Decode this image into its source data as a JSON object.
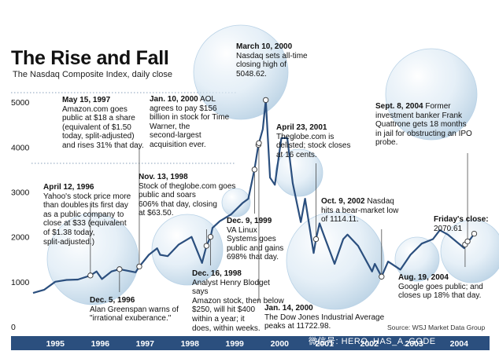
{
  "title": "The Rise and Fall",
  "subtitle": "The Nasdaq Composite Index, daily close",
  "source": "Source: WSJ Market Data Group",
  "watermark": "微信号: HERO_HAS_A_GODE",
  "colors": {
    "line": "#2b4f7e",
    "band": "#2b4f7e",
    "bubble": "#c7dced",
    "dots": "#9fb3c8",
    "text": "#111111"
  },
  "chart_data": {
    "type": "line",
    "title": "The Rise and Fall",
    "subtitle": "The Nasdaq Composite Index, daily close",
    "x_start": "1995-01-01",
    "x_end": "2005-01-01",
    "x_ticks": [
      "1995",
      "1996",
      "1997",
      "1998",
      "1999",
      "2000",
      "2001",
      "2002",
      "2003",
      "2004"
    ],
    "y_ticks": [
      0,
      1000,
      2000,
      3000,
      4000,
      5000
    ],
    "ylim": [
      0,
      5300
    ],
    "grid": false,
    "series": [
      {
        "points": [
          [
            "1995-01-01",
            750
          ],
          [
            "1995-04-01",
            820
          ],
          [
            "1995-07-01",
            1000
          ],
          [
            "1995-10-01",
            1040
          ],
          [
            "1996-01-01",
            1050
          ],
          [
            "1996-04-12",
            1140
          ],
          [
            "1996-06-01",
            1230
          ],
          [
            "1996-07-15",
            1060
          ],
          [
            "1996-10-01",
            1230
          ],
          [
            "1996-12-05",
            1280
          ],
          [
            "1997-04-15",
            1210
          ],
          [
            "1997-05-15",
            1340
          ],
          [
            "1997-08-01",
            1600
          ],
          [
            "1997-10-07",
            1745
          ],
          [
            "1997-11-01",
            1600
          ],
          [
            "1998-01-01",
            1570
          ],
          [
            "1998-04-01",
            1830
          ],
          [
            "1998-07-15",
            2000
          ],
          [
            "1998-10-08",
            1420
          ],
          [
            "1998-11-13",
            1800
          ],
          [
            "1998-12-16",
            2000
          ],
          [
            "1999-01-01",
            2200
          ],
          [
            "1999-03-01",
            2350
          ],
          [
            "1999-06-01",
            2500
          ],
          [
            "1999-09-01",
            2750
          ],
          [
            "1999-10-20",
            2850
          ],
          [
            "1999-12-09",
            3500
          ],
          [
            "2000-01-10",
            4050
          ],
          [
            "2000-02-15",
            4400
          ],
          [
            "2000-03-10",
            5048.62
          ],
          [
            "2000-04-14",
            3320
          ],
          [
            "2000-05-23",
            3160
          ],
          [
            "2000-07-15",
            4200
          ],
          [
            "2000-09-01",
            4200
          ],
          [
            "2000-10-15",
            3200
          ],
          [
            "2000-12-20",
            2330
          ],
          [
            "2001-01-24",
            2850
          ],
          [
            "2001-04-04",
            1640
          ],
          [
            "2001-04-23",
            1950
          ],
          [
            "2001-05-22",
            2300
          ],
          [
            "2001-07-01",
            2000
          ],
          [
            "2001-09-21",
            1400
          ],
          [
            "2001-12-01",
            1950
          ],
          [
            "2002-01-04",
            2050
          ],
          [
            "2002-04-01",
            1800
          ],
          [
            "2002-07-23",
            1230
          ],
          [
            "2002-08-15",
            1400
          ],
          [
            "2002-10-09",
            1114.11
          ],
          [
            "2002-12-01",
            1450
          ],
          [
            "2003-03-11",
            1270
          ],
          [
            "2003-06-01",
            1600
          ],
          [
            "2003-09-01",
            1850
          ],
          [
            "2003-12-01",
            1950
          ],
          [
            "2004-01-26",
            2150
          ],
          [
            "2004-04-01",
            2050
          ],
          [
            "2004-08-12",
            1750
          ],
          [
            "2004-08-19",
            1830
          ],
          [
            "2004-09-08",
            1900
          ],
          [
            "2004-10-01",
            1950
          ],
          [
            "2004-11-01",
            2070.61
          ]
        ]
      }
    ],
    "annotations": [
      {
        "date": "May 15, 1997",
        "text": "Amazon.com goes\npublic at $18 a share\n(equivalent of $1.50\ntoday, split-adjusted)\nand rises 31% that day."
      },
      {
        "date": "April 12, 1996",
        "text": "Yahoo's stock price more\nthan doubles its first day\nas a public company to\nclose at $33 (equivalent\nof $1.38 today,\nsplit-adjusted.)"
      },
      {
        "date": "Dec. 5, 1996",
        "text": "Alan Greenspan warns of\n\"irrational exuberance.\""
      },
      {
        "date": "Jan. 10, 2000",
        "text": "AOL\nagrees to pay $156\nbillion in stock for Time\nWarner, the\nsecond-largest\nacquisition ever."
      },
      {
        "date": "Nov. 13, 1998",
        "text": "Stock of theglobe.com goes\npublic and soars\n606% that day, closing\nat $63.50."
      },
      {
        "date": "Dec. 16, 1998",
        "text": "Analyst Henry Blodget says\nAmazon stock, then below\n$250, will hit $400\nwithin a year; it\ndoes, within weeks."
      },
      {
        "date": "March 10, 2000",
        "text": "Nasdaq sets all-time\nclosing high of\n5048.62."
      },
      {
        "date": "Dec. 9, 1999",
        "text": "VA Linux\nSystems goes\npublic and gains\n698% that day."
      },
      {
        "date": "Jan. 14, 2000",
        "text": "The Dow Jones Industrial Average\npeaks at 11722.98."
      },
      {
        "date": "April 23, 2001",
        "text": "Theglobe.com is\ndelisted; stock closes\nat 16 cents."
      },
      {
        "date": "Oct. 9, 2002",
        "text": "Nasdaq\nhits a bear-market low\nof 1114.11."
      },
      {
        "date": "Sept. 8, 2004",
        "text": "Former\ninvestment banker Frank\nQuattrone gets 18 months\nin jail for obstructing an IPO\nprobe."
      },
      {
        "date": "Friday's close:",
        "text": "2070.61"
      },
      {
        "date": "Aug. 19, 2004",
        "text": "Google goes public; and\ncloses up 18% that day."
      }
    ],
    "markers": [
      "1996-04-12",
      "1996-12-05",
      "1997-05-15",
      "1998-11-13",
      "1998-12-16",
      "1999-12-09",
      "2000-01-10",
      "2000-01-14",
      "2000-03-10",
      "2001-04-23",
      "2002-10-09",
      "2004-08-19",
      "2004-09-08",
      "2004-11-01"
    ]
  }
}
